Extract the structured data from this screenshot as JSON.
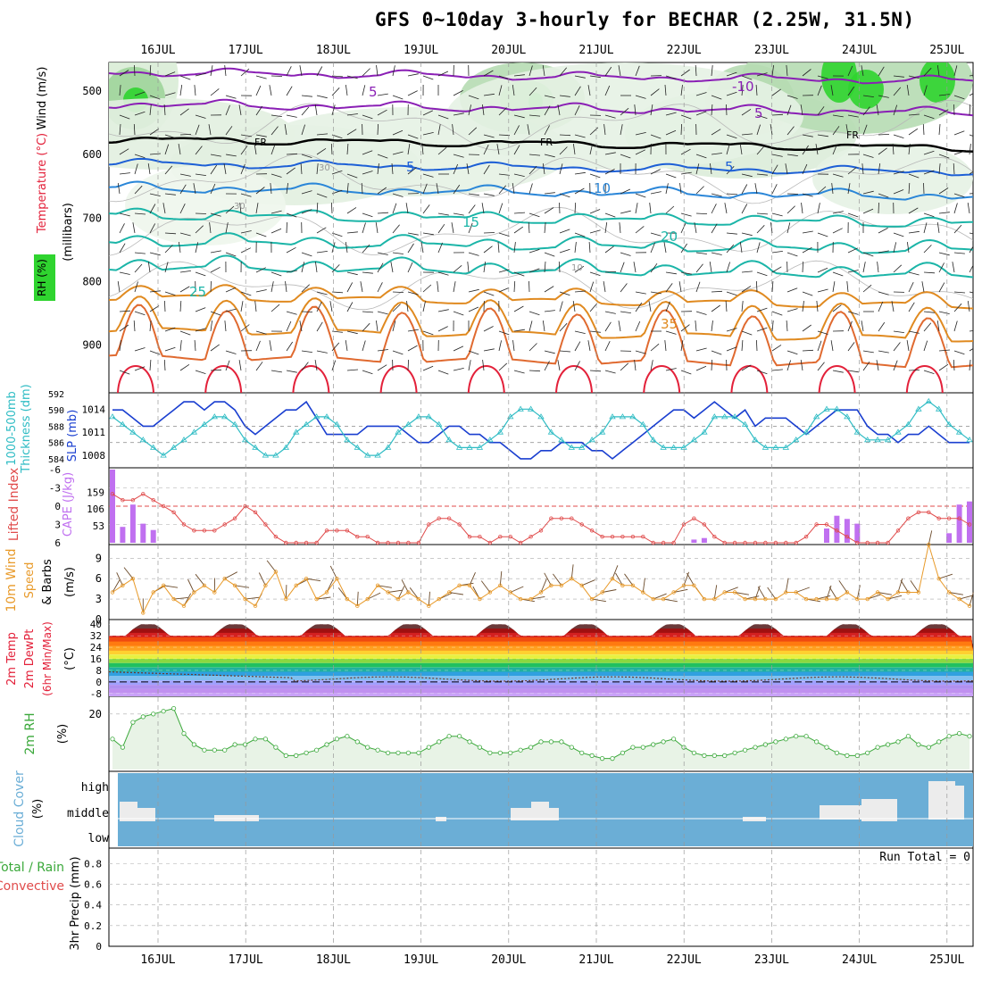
{
  "title": "GFS 0~10day 3-hourly for BECHAR (2.25W, 31.5N)",
  "dates": [
    "16JUL",
    "17JUL",
    "18JUL",
    "19JUL",
    "20JUL",
    "21JUL",
    "22JUL",
    "23JUL",
    "24JUL",
    "25JUL"
  ],
  "colors": {
    "temp_cold": "#8a1fb5",
    "temp_freeze": "#000000",
    "temp_blue": "#1d5fd6",
    "temp_teal": "#1bb5a8",
    "temp_orange": "#e08a20",
    "temp_red": "#e3213a",
    "rh_green": "#2fd42f",
    "thickness": "#1a3fd0",
    "slp": "#2fbcc4",
    "lifted_index": "#e04b4b",
    "cape": "#c070f0",
    "wind10m": "#e89a2a",
    "rh2m": "#3aa83a",
    "cloud_bg": "#6baed6",
    "cloud_fill": "#ececec"
  },
  "panels": {
    "upper": {
      "labels": {
        "rh": "RH (%)",
        "temp": "Temperature (°C)",
        "wind": "Wind (m/s)",
        "pressure": "(millibars)"
      },
      "y_ticks": [
        500,
        600,
        700,
        800,
        900
      ],
      "contour_labels": [
        "-10",
        "5",
        "FR",
        "FR",
        "FR",
        "5",
        "5",
        "10",
        "15",
        "20",
        "25",
        "35",
        "30",
        "30",
        "10",
        "-5",
        "5"
      ]
    },
    "thickness": {
      "labels": {
        "thickness": "1000-500mb",
        "thickness2": "Thickness (dm)",
        "slp": "SLP (mb)"
      },
      "left_ticks": [
        "592",
        "590",
        "588",
        "586",
        "584"
      ],
      "right_ticks": [
        "1014",
        "1011",
        "1008"
      ]
    },
    "li_cape": {
      "labels": {
        "li": "Lifted Index",
        "cape": "CAPE (J/kg)"
      },
      "left_ticks": [
        "-6",
        "-3",
        "0",
        "3",
        "6"
      ],
      "right_ticks": [
        "159",
        "106",
        "53"
      ]
    },
    "wind10": {
      "labels": {
        "title": "10m Wind",
        "sub1": "Speed",
        "sub2": "& Barbs",
        "unit": "(m/s)"
      },
      "ticks": [
        "9",
        "6",
        "3",
        "0"
      ]
    },
    "temp2m": {
      "labels": {
        "l1": "2m Temp",
        "l2": "2m DewPt",
        "l3": "(6hr Min/Max)",
        "unit": "(°C)"
      },
      "ticks": [
        "40",
        "32",
        "24",
        "16",
        "8",
        "0",
        "-8"
      ]
    },
    "rh2m": {
      "labels": {
        "title": "2m RH",
        "unit": "(%)"
      },
      "ticks": [
        "20"
      ]
    },
    "cloud": {
      "labels": {
        "title": "Cloud Cover",
        "unit": "(%)"
      },
      "ticks": [
        "high",
        "middle",
        "low"
      ]
    },
    "precip": {
      "labels": {
        "title1": "Total / Rain",
        "title2": "Convective",
        "axis": "3hr Precip (mm)"
      },
      "ticks": [
        "0.8",
        "0.6",
        "0.4",
        "0.2",
        "0"
      ],
      "run_total": "Run Total = 0"
    }
  },
  "chart_data": [
    {
      "type": "line",
      "name": "1000-500mb Thickness / SLP",
      "series": [
        {
          "name": "1000-500mb Thickness (dm)",
          "values": [
            590,
            590,
            589,
            588,
            588,
            589,
            590,
            591,
            591,
            590,
            591,
            591,
            590,
            588,
            587,
            588,
            589,
            590,
            590,
            591,
            589,
            587,
            587,
            587,
            587,
            588,
            588,
            588,
            588,
            587,
            586,
            586,
            587,
            588,
            588,
            587,
            587,
            586,
            586,
            585,
            584,
            584,
            585,
            585,
            586,
            586,
            586,
            585,
            585,
            584,
            585,
            586,
            587,
            588,
            589,
            590,
            590,
            589,
            590,
            591,
            590,
            589,
            590,
            588,
            589,
            589,
            589,
            588,
            587,
            588,
            589,
            590,
            590,
            590,
            588,
            587,
            587,
            586,
            587,
            587,
            588,
            587,
            586,
            586,
            586
          ]
        },
        {
          "name": "SLP (mb)",
          "values": [
            1013,
            1012,
            1011,
            1010,
            1009,
            1008,
            1009,
            1010,
            1011,
            1012,
            1013,
            1013,
            1012,
            1010,
            1009,
            1008,
            1008,
            1009,
            1011,
            1012,
            1013,
            1013,
            1012,
            1010,
            1009,
            1008,
            1008,
            1009,
            1011,
            1012,
            1013,
            1013,
            1012,
            1010,
            1009,
            1009,
            1009,
            1010,
            1011,
            1013,
            1014,
            1014,
            1013,
            1011,
            1010,
            1009,
            1009,
            1010,
            1011,
            1013,
            1013,
            1013,
            1012,
            1010,
            1009,
            1009,
            1009,
            1010,
            1011,
            1013,
            1013,
            1013,
            1012,
            1010,
            1009,
            1009,
            1009,
            1010,
            1011,
            1013,
            1014,
            1014,
            1013,
            1011,
            1010,
            1010,
            1010,
            1011,
            1012,
            1014,
            1015,
            1014,
            1012,
            1011,
            1010
          ]
        }
      ]
    },
    {
      "type": "bar",
      "name": "Lifted Index / CAPE",
      "series": [
        {
          "name": "Lifted Index",
          "values": [
            -2,
            -1,
            -1,
            -2,
            -1,
            0,
            1,
            3,
            4,
            4,
            4,
            3,
            2,
            0,
            1,
            3,
            5,
            6,
            6,
            6,
            6,
            4,
            4,
            4,
            5,
            5,
            6,
            6,
            6,
            6,
            6,
            3,
            2,
            2,
            3,
            5,
            5,
            6,
            5,
            5,
            6,
            5,
            4,
            2,
            2,
            2,
            3,
            4,
            5,
            5,
            5,
            5,
            5,
            6,
            6,
            6,
            3,
            2,
            3,
            5,
            6,
            6,
            6,
            6,
            6,
            6,
            6,
            6,
            5,
            3,
            3,
            4,
            5,
            6,
            6,
            6,
            6,
            4,
            2,
            1,
            1,
            2,
            2,
            2,
            3,
            2
          ]
        },
        {
          "name": "CAPE (J/kg)",
          "values": [
            230,
            50,
            120,
            60,
            40,
            0,
            0,
            0,
            0,
            0,
            0,
            0,
            0,
            0,
            0,
            0,
            0,
            0,
            0,
            0,
            0,
            0,
            0,
            0,
            0,
            0,
            0,
            0,
            0,
            0,
            0,
            0,
            0,
            0,
            0,
            0,
            0,
            0,
            0,
            0,
            0,
            0,
            0,
            0,
            0,
            0,
            0,
            0,
            0,
            0,
            0,
            0,
            0,
            0,
            0,
            0,
            0,
            10,
            15,
            0,
            0,
            0,
            0,
            0,
            0,
            0,
            0,
            0,
            0,
            0,
            45,
            85,
            75,
            60,
            0,
            0,
            0,
            0,
            0,
            0,
            0,
            0,
            30,
            120,
            130,
            120,
            105
          ]
        }
      ]
    },
    {
      "type": "line",
      "name": "10m Wind Speed",
      "series": [
        {
          "name": "10m Wind Speed (m/s)",
          "values": [
            4,
            5,
            6,
            1,
            4,
            5,
            3,
            2,
            4,
            5,
            4,
            6,
            5,
            3,
            2,
            5,
            7,
            3,
            5,
            6,
            3,
            4,
            6,
            3,
            2,
            3,
            5,
            4,
            3,
            4,
            3,
            2,
            3,
            4,
            5,
            5,
            3,
            4,
            5,
            4,
            3,
            3,
            4,
            5,
            5,
            6,
            5,
            3,
            4,
            6,
            5,
            5,
            4,
            3,
            3,
            4,
            5,
            5,
            3,
            3,
            4,
            4,
            3,
            3,
            3,
            3,
            4,
            4,
            3,
            3,
            3,
            3,
            4,
            3,
            3,
            4,
            3,
            4,
            4,
            4,
            11,
            6,
            4,
            3,
            2
          ]
        }
      ]
    },
    {
      "type": "area",
      "name": "2m Relative Humidity",
      "series": [
        {
          "name": "2m RH (%)",
          "values": [
            11,
            8,
            17,
            19,
            20,
            21,
            22,
            13,
            9,
            7,
            7,
            7,
            9,
            9,
            11,
            11,
            8,
            5,
            5,
            6,
            7,
            9,
            11,
            12,
            10,
            8,
            7,
            6,
            6,
            6,
            6,
            8,
            10,
            12,
            12,
            10,
            8,
            6,
            6,
            6,
            7,
            8,
            10,
            10,
            10,
            8,
            6,
            5,
            4,
            4,
            6,
            8,
            8,
            9,
            10,
            11,
            8,
            6,
            5,
            5,
            5,
            6,
            7,
            8,
            9,
            10,
            11,
            12,
            12,
            10,
            8,
            6,
            5,
            5,
            6,
            8,
            9,
            10,
            12,
            9,
            8,
            10,
            12,
            13,
            12
          ]
        }
      ]
    }
  ]
}
